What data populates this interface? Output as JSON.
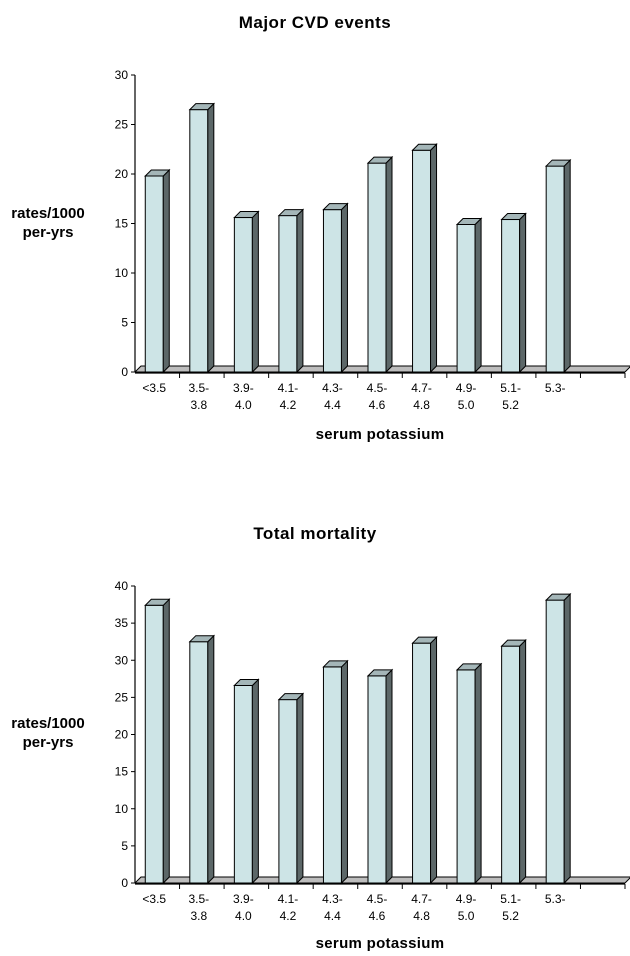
{
  "chart_data": [
    {
      "type": "bar",
      "title": "Major CVD events",
      "xlabel": "serum potassium",
      "ylabel": "rates/1000 per-yrs",
      "ylim": [
        0,
        30
      ],
      "yticks": [
        0,
        5,
        10,
        15,
        20,
        25,
        30
      ],
      "categories": [
        [
          "<3.5"
        ],
        [
          "3.5-",
          "3.8"
        ],
        [
          "3.9-",
          "4.0"
        ],
        [
          "4.1-",
          "4.2"
        ],
        [
          "4.3-",
          "4.4"
        ],
        [
          "4.5-",
          "4.6"
        ],
        [
          "4.7-",
          "4.8"
        ],
        [
          "4.9-",
          "5.0"
        ],
        [
          "5.1-",
          "5.2"
        ],
        [
          "5.3-"
        ],
        [
          ""
        ]
      ],
      "values": [
        19.8,
        26.5,
        15.6,
        15.8,
        16.4,
        21.1,
        22.4,
        14.9,
        15.4,
        20.8,
        0
      ],
      "bar_color": "#cde4e6",
      "grid": false
    },
    {
      "type": "bar",
      "title": "Total mortality",
      "xlabel": "serum potassium",
      "ylabel": "rates/1000 per-yrs",
      "ylim": [
        0,
        40
      ],
      "yticks": [
        0,
        5,
        10,
        15,
        20,
        25,
        30,
        35,
        40
      ],
      "categories": [
        [
          "<3.5"
        ],
        [
          "3.5-",
          "3.8"
        ],
        [
          "3.9-",
          "4.0"
        ],
        [
          "4.1-",
          "4.2"
        ],
        [
          "4.3-",
          "4.4"
        ],
        [
          "4.5-",
          "4.6"
        ],
        [
          "4.7-",
          "4.8"
        ],
        [
          "4.9-",
          "5.0"
        ],
        [
          "5.1-",
          "5.2"
        ],
        [
          "5.3-"
        ],
        [
          ""
        ]
      ],
      "values": [
        37.4,
        32.5,
        26.6,
        24.7,
        29.1,
        27.9,
        32.3,
        28.7,
        31.9,
        38.1,
        0
      ],
      "bar_color": "#cde4e6",
      "grid": false
    }
  ]
}
